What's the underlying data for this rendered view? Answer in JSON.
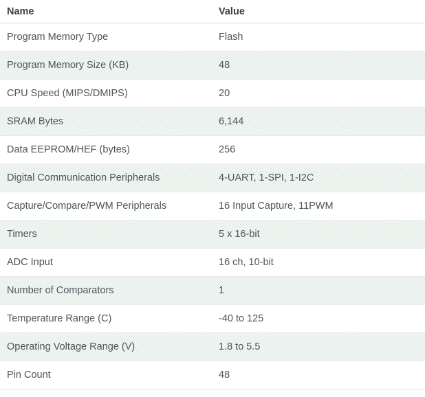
{
  "colors": {
    "header_text": "#3b4045",
    "body_text": "#4e555b",
    "stripe_dot": "#dbe7e0",
    "header_border": "#d5dad9",
    "row_border": "#e7ebea"
  },
  "table": {
    "columns": {
      "name": "Name",
      "value": "Value"
    },
    "rows": [
      {
        "name": "Program Memory Type",
        "value": "Flash"
      },
      {
        "name": "Program Memory Size (KB)",
        "value": "48"
      },
      {
        "name": "CPU Speed (MIPS/DMIPS)",
        "value": "20"
      },
      {
        "name": "SRAM Bytes",
        "value": "6,144"
      },
      {
        "name": "Data EEPROM/HEF (bytes)",
        "value": "256"
      },
      {
        "name": "Digital Communication Peripherals",
        "value": "4-UART, 1-SPI, 1-I2C"
      },
      {
        "name": "Capture/Compare/PWM Peripherals",
        "value": "16 Input Capture, 11PWM"
      },
      {
        "name": "Timers",
        "value": "5 x 16-bit"
      },
      {
        "name": "ADC Input",
        "value": "16 ch, 10-bit"
      },
      {
        "name": "Number of Comparators",
        "value": "1"
      },
      {
        "name": "Temperature Range (C)",
        "value": "-40 to 125"
      },
      {
        "name": "Operating Voltage Range (V)",
        "value": "1.8 to 5.5"
      },
      {
        "name": "Pin Count",
        "value": "48"
      }
    ]
  }
}
